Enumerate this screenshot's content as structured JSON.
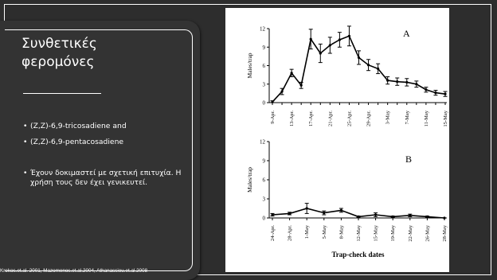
{
  "slide": {
    "title_line1": "Συνθετικές",
    "title_line2": "φερομόνες",
    "bullets": [
      "(Z,Z)-6,9-tricosadiene and",
      "(Z,Z)-6,9-pentacosadiene",
      "Έχουν δοκιμαστεί με σχετική επιτυχία. Η χρήση τους δεν έχει γενικευτεί."
    ],
    "bullet_marker": "•",
    "citation": "Krokos.et.al. 2001, Mazomenos.et.al.2004, Athanassiou.et.al.2008"
  },
  "chart_data": [
    {
      "type": "line",
      "panel_label": "A",
      "ylabel": "Males/trap",
      "x": [
        "9-Apr.",
        "11-Apr.",
        "13-Apr.",
        "15-Apr.",
        "17-Apr.",
        "19-Apr.",
        "21-Apr.",
        "23-Apr.",
        "25-Apr.",
        "27-Apr.",
        "29-Apr.",
        "1-May",
        "3-May",
        "5-May",
        "7-May",
        "9-May",
        "11-May",
        "13-May",
        "15-May"
      ],
      "xtick_labels": [
        "9-Apr.",
        "13-Apr.",
        "17-Apr.",
        "21-Apr.",
        "25-Apr.",
        "29-Apr.",
        "3-May",
        "7-May",
        "11-May",
        "15-May"
      ],
      "values": [
        0.1,
        1.8,
        4.8,
        2.8,
        10.3,
        8.0,
        9.3,
        10.2,
        10.8,
        7.3,
        6.1,
        5.5,
        3.6,
        3.4,
        3.3,
        3.0,
        2.1,
        1.6,
        1.4
      ],
      "errors": [
        0.2,
        0.5,
        0.6,
        0.5,
        1.6,
        1.5,
        1.3,
        1.2,
        1.6,
        1.1,
        0.9,
        0.8,
        0.6,
        0.6,
        0.6,
        0.5,
        0.4,
        0.4,
        0.4
      ],
      "ylim": [
        0,
        12
      ],
      "yticks": [
        0,
        3,
        6,
        9,
        12
      ]
    },
    {
      "type": "line",
      "panel_label": "B",
      "ylabel": "Males/trap",
      "xlabel": "Trap-check dates",
      "x": [
        "24-Apr.",
        "28-Apr.",
        "1-May",
        "5-May",
        "8-May",
        "12-May",
        "15-May",
        "19-May",
        "22-May",
        "26-May",
        "28-May"
      ],
      "xtick_labels": [
        "24-Apr.",
        "28-Apr.",
        "1-May",
        "5-May",
        "8-May",
        "12-May",
        "15-May",
        "19-May",
        "22-May",
        "26-May",
        "28-May"
      ],
      "values": [
        0.5,
        0.7,
        1.5,
        0.8,
        1.2,
        0.2,
        0.5,
        0.2,
        0.4,
        0.2,
        0.0
      ],
      "errors": [
        0.2,
        0.2,
        0.8,
        0.3,
        0.3,
        0.1,
        0.3,
        0.1,
        0.2,
        0.1,
        0.0
      ],
      "ylim": [
        0,
        12
      ],
      "yticks": [
        0,
        3,
        6,
        9,
        12
      ]
    }
  ]
}
